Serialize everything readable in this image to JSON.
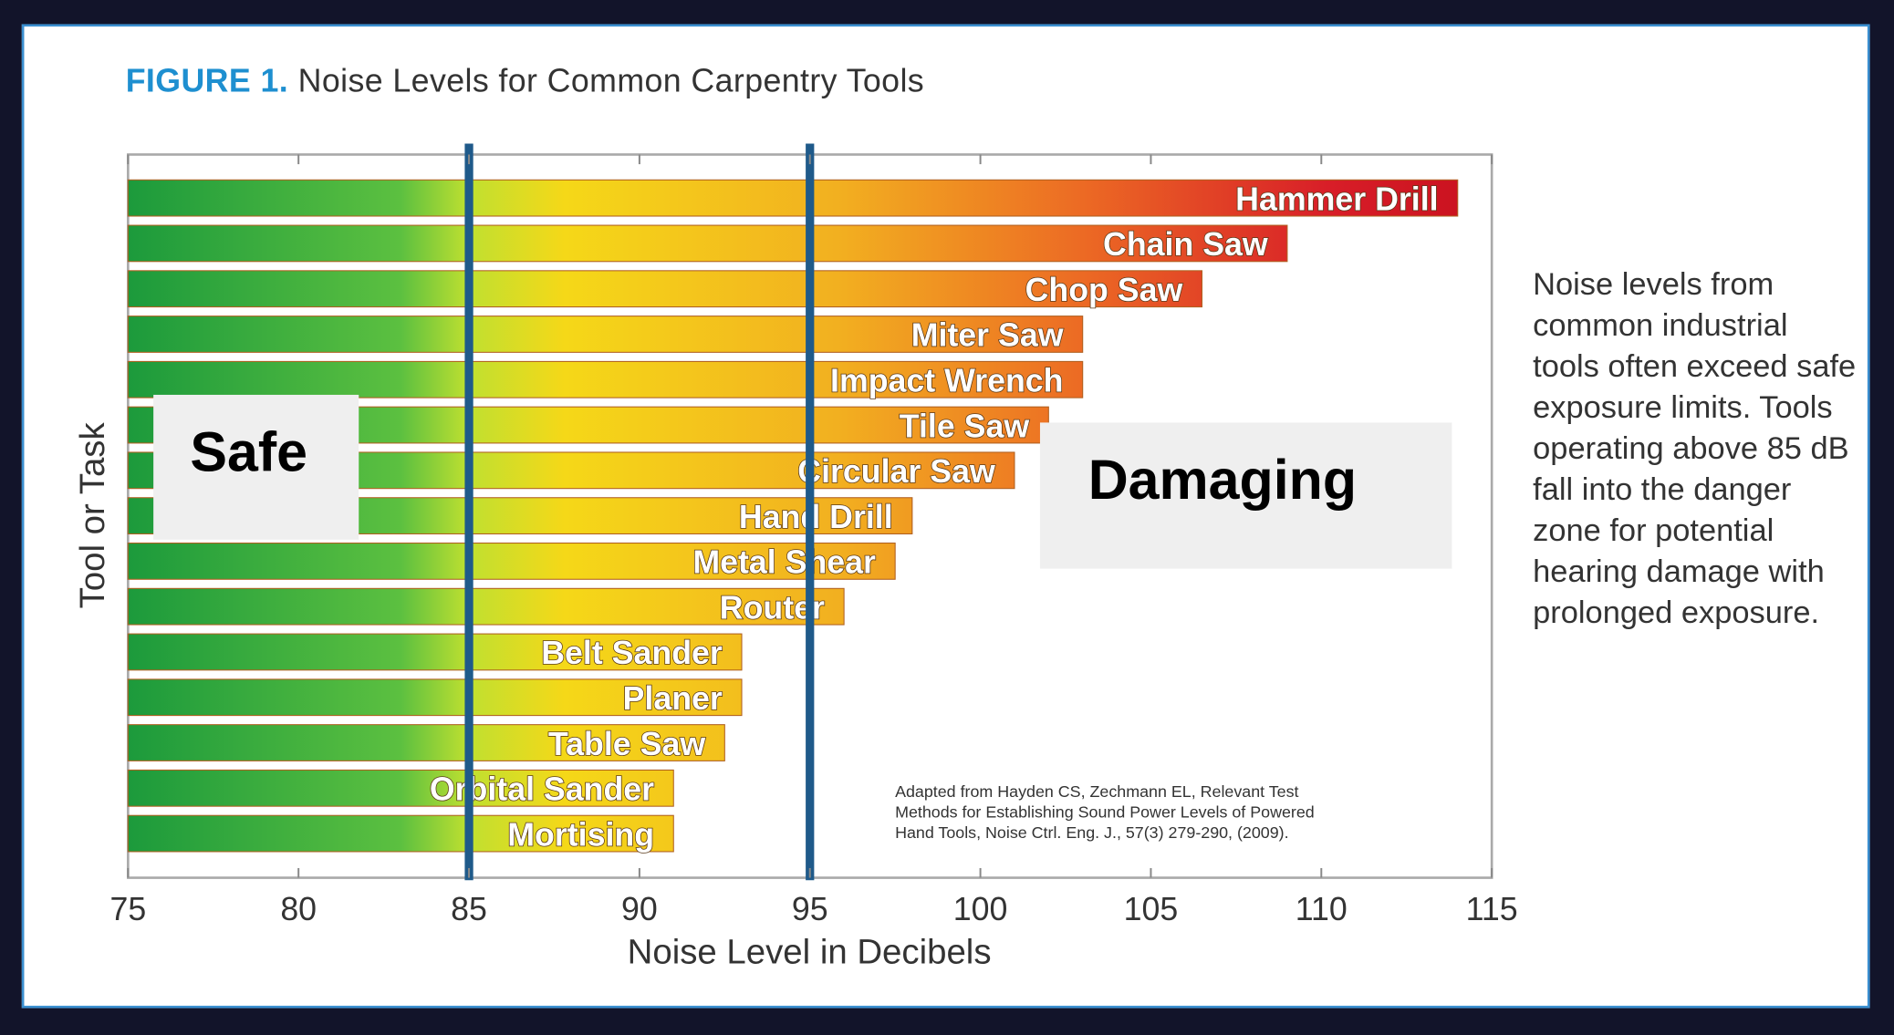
{
  "figure_label": "FIGURE 1.",
  "figure_title": "Noise Levels for Common Carpentry Tools",
  "side_text": "Noise levels from common industrial tools often exceed safe exposure limits. Tools operating above 85 dB fall into the danger zone for potential hearing damage with prolonged exposure.",
  "colors": {
    "safe_green": "#1c9a3c",
    "yellow": "#f5d010",
    "orange": "#f0a020",
    "red": "#d81e28",
    "threshold_line": "#1f5a8a",
    "accent": "#1e8fd0"
  },
  "chart_data": {
    "type": "bar",
    "orientation": "horizontal",
    "title": "Noise Levels for Common Carpentry Tools",
    "xlabel": "Noise Level in Decibels",
    "ylabel": "Tool or Task",
    "xlim": [
      75,
      115
    ],
    "xticks": [
      75,
      80,
      85,
      90,
      95,
      100,
      105,
      110,
      115
    ],
    "categories": [
      "Hammer Drill",
      "Chain Saw",
      "Chop Saw",
      "Miter Saw",
      "Impact Wrench",
      "Tile Saw",
      "Circular Saw",
      "Hand Drill",
      "Metal Shear",
      "Router",
      "Belt Sander",
      "Planer",
      "Table Saw",
      "Orbital Sander",
      "Mortising"
    ],
    "values": [
      114,
      109,
      106.5,
      103,
      103,
      102,
      101,
      98,
      97.5,
      96,
      93,
      93,
      92.5,
      91,
      91
    ],
    "reference_lines": [
      85,
      95
    ],
    "zones": {
      "safe": "Safe",
      "damaging": "Damaging"
    },
    "source": [
      "Adapted from Hayden CS, Zechmann EL, Relevant Test",
      "Methods for Establishing Sound Power Levels of Powered",
      "Hand Tools, Noise Ctrl. Eng. J., 57(3) 279-290, (2009)."
    ],
    "grid": false
  }
}
